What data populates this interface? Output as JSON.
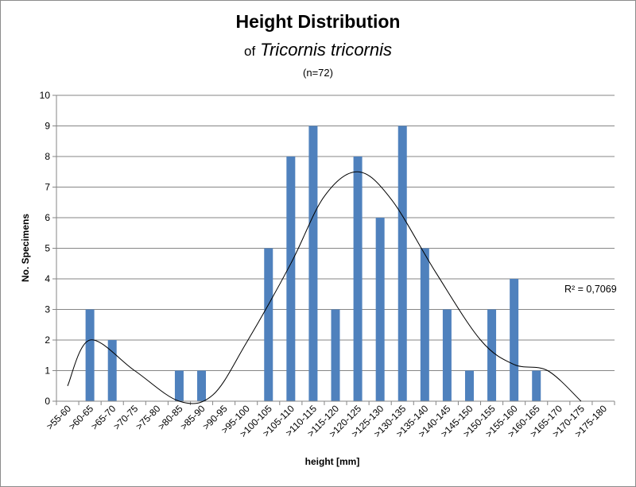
{
  "chart_data": {
    "type": "bar",
    "title": "Height Distribution",
    "subtitle_prefix": "of",
    "subtitle": "Tricornis tricornis",
    "sample_note": "(n=72)",
    "xlabel": "height [mm]",
    "ylabel": "No. Specimens",
    "ylim": [
      0,
      10
    ],
    "yticks": [
      0,
      1,
      2,
      3,
      4,
      5,
      6,
      7,
      8,
      9,
      10
    ],
    "grid": "horizontal",
    "categories": [
      ">55-60",
      ">60-65",
      ">65-70",
      ">70-75",
      ">75-80",
      ">80-85",
      ">85-90",
      ">90-95",
      ">95-100",
      ">100-105",
      ">105-110",
      ">110-115",
      ">115-120",
      ">120-125",
      ">125-130",
      ">130-135",
      ">135-140",
      ">140-145",
      ">145-150",
      ">150-155",
      ">155-160",
      ">160-165",
      ">165-170",
      ">170-175",
      ">175-180"
    ],
    "values": [
      0,
      3,
      2,
      0,
      0,
      1,
      1,
      0,
      0,
      5,
      8,
      9,
      3,
      8,
      6,
      9,
      5,
      3,
      1,
      3,
      4,
      1,
      0,
      0,
      0
    ],
    "bar_color": "#4f81bd",
    "trendline": {
      "type": "polynomial",
      "label": "R² = 0,7069",
      "points": [
        0.5,
        2.0,
        1.0,
        0.0,
        0.2,
        1.9,
        4.5,
        6.7,
        7.5,
        6.6,
        4.2,
        2.0,
        1.2,
        1.0,
        0.0
      ],
      "point_categories": [
        0,
        1,
        3,
        5,
        6.5,
        8,
        10,
        11.5,
        13,
        14.5,
        16.5,
        18.5,
        20,
        21.5,
        23
      ],
      "color": "#000000"
    }
  }
}
